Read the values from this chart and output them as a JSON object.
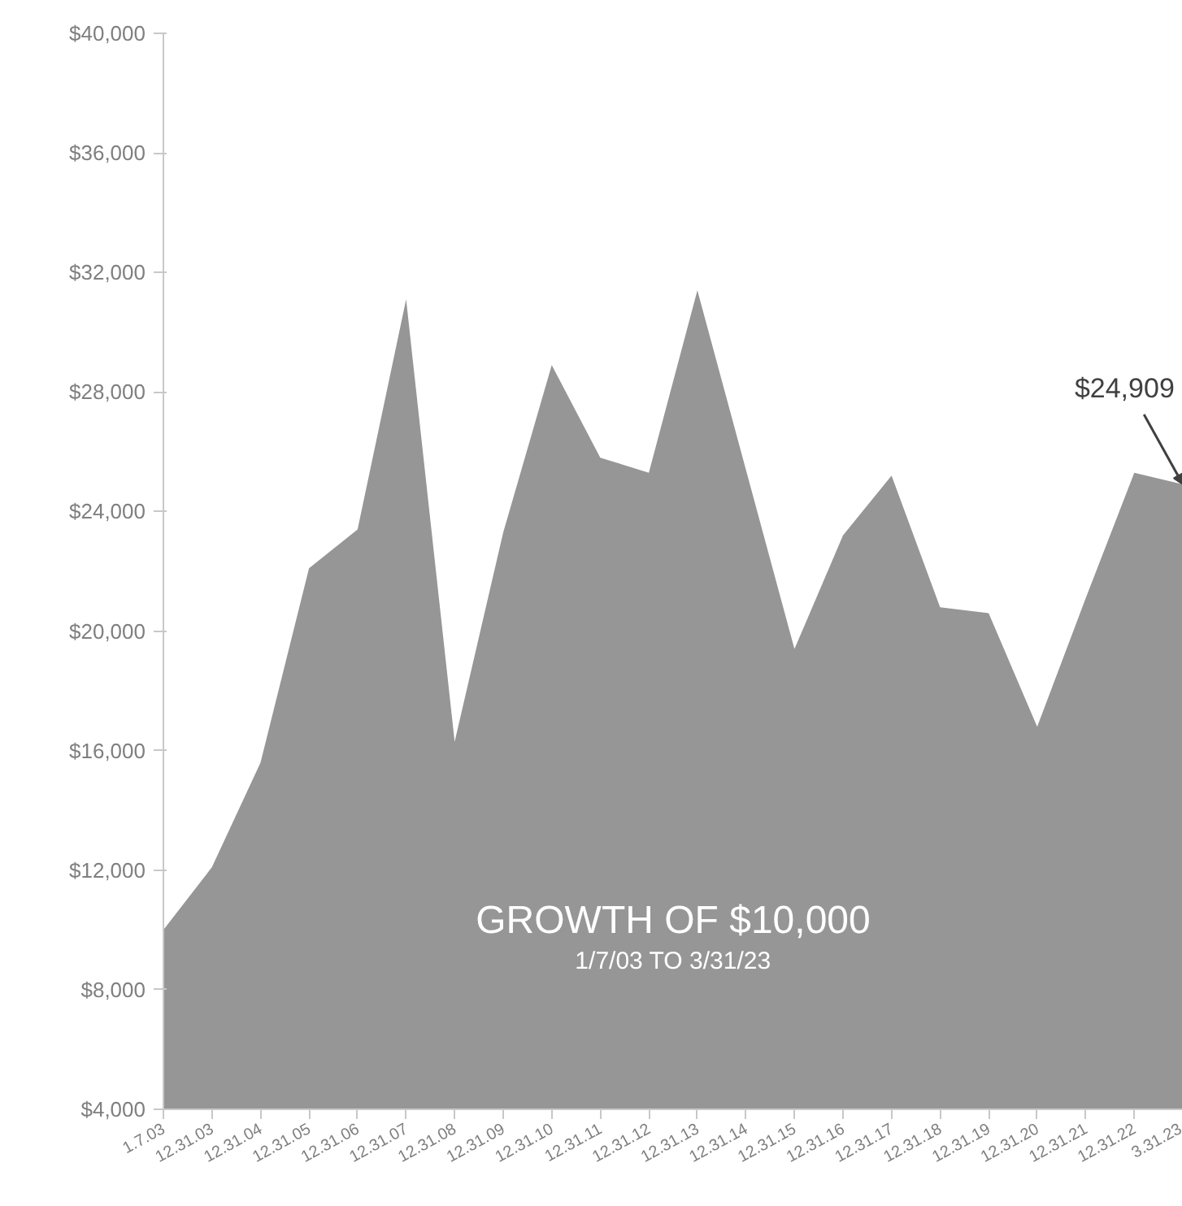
{
  "chart_data": {
    "type": "area",
    "title": "GROWTH OF $10,000",
    "subtitle": "1/7/03 TO 3/31/23",
    "categories": [
      "1.7.03",
      "12.31.03",
      "12.31.04",
      "12.31.05",
      "12.31.06",
      "12.31.07",
      "12.31.08",
      "12.31.09",
      "12.31.10",
      "12.31.11",
      "12.31.12",
      "12.31.13",
      "12.31.14",
      "12.31.15",
      "12.31.16",
      "12.31.17",
      "12.31.18",
      "12.31.19",
      "12.31.20",
      "12.31.21",
      "12.31.22",
      "3.31.23"
    ],
    "values": [
      10000,
      12100,
      15600,
      22100,
      23400,
      31100,
      16300,
      23300,
      28900,
      25800,
      25300,
      31400,
      25400,
      19400,
      23200,
      25200,
      20800,
      20600,
      16800,
      21100,
      25300,
      24909
    ],
    "color": "#969696",
    "ylim": [
      4000,
      40000
    ],
    "yticks": [
      {
        "value": 4000,
        "label": "$4,000"
      },
      {
        "value": 8000,
        "label": "$8,000"
      },
      {
        "value": 12000,
        "label": "$12,000"
      },
      {
        "value": 16000,
        "label": "$16,000"
      },
      {
        "value": 20000,
        "label": "$20,000"
      },
      {
        "value": 24000,
        "label": "$24,000"
      },
      {
        "value": 28000,
        "label": "$28,000"
      },
      {
        "value": 32000,
        "label": "$32,000"
      },
      {
        "value": 36000,
        "label": "$36,000"
      },
      {
        "value": 40000,
        "label": "$40,000"
      }
    ],
    "annotations": [
      {
        "text": "$24,909",
        "x": "3.31.23",
        "y": 24909
      }
    ],
    "grid": false
  }
}
